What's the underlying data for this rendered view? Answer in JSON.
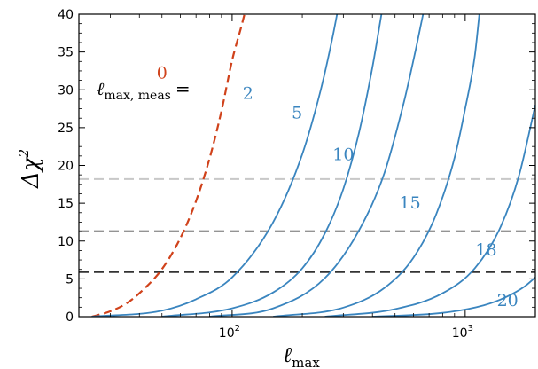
{
  "chart_data": {
    "type": "line",
    "xlabel_main": "ℓ",
    "xlabel_sub": "max",
    "ylabel_main": "Δχ",
    "ylabel_sup": "2",
    "xscale": "log",
    "xlim": [
      22,
      2000
    ],
    "ylim": [
      0,
      40
    ],
    "y_ticks": [
      0,
      5,
      10,
      15,
      20,
      25,
      30,
      35,
      40
    ],
    "x_major_ticks": [
      {
        "value": 100,
        "base": "10",
        "exp": "2"
      },
      {
        "value": 1000,
        "base": "10",
        "exp": "3"
      }
    ],
    "grid": false,
    "legend_title": {
      "main": "ℓ",
      "sub": "max, meas",
      "suffix": "="
    },
    "colors": {
      "ref": "#d0421b",
      "series": "#3a85bf",
      "axis": "#000000"
    },
    "thresholds": [
      {
        "y": 18.2,
        "color": "#c8c8c8"
      },
      {
        "y": 11.3,
        "color": "#949494"
      },
      {
        "y": 5.9,
        "color": "#333333"
      }
    ],
    "series": [
      {
        "name": "0",
        "x": [
          25,
          30,
          35,
          40,
          50,
          60,
          70,
          80,
          90,
          100,
          110,
          120
        ],
        "y": [
          0,
          0.7,
          1.7,
          3.1,
          6.3,
          10.4,
          15.3,
          20.9,
          27.2,
          33.9,
          38.6,
          43.2
        ],
        "style": "dashed",
        "label_at": [
          50,
          31.5
        ]
      },
      {
        "name": "2",
        "x": [
          25,
          50,
          70,
          100,
          150,
          200,
          240,
          270,
          290
        ],
        "y": [
          0,
          0.8,
          2.3,
          5.2,
          12.5,
          21.5,
          30,
          37,
          42
        ],
        "style": "solid",
        "label_at": [
          117,
          28.8
        ]
      },
      {
        "name": "5",
        "x": [
          50,
          100,
          150,
          200,
          250,
          300,
          350,
          400,
          440
        ],
        "y": [
          0,
          1.1,
          3.2,
          6.4,
          11,
          16.9,
          24.3,
          33,
          40.5
        ],
        "style": "solid",
        "label_at": [
          190,
          26.2
        ]
      },
      {
        "name": "10",
        "x": [
          80,
          150,
          250,
          350,
          450,
          550,
          620,
          680
        ],
        "y": [
          0,
          1.1,
          5.1,
          11.4,
          19,
          28.8,
          36,
          42
        ],
        "style": "solid",
        "label_at": [
          300,
          20.7
        ]
      },
      {
        "name": "15",
        "x": [
          150,
          300,
          450,
          600,
          750,
          900,
          1000,
          1100,
          1150
        ],
        "y": [
          0,
          1.2,
          3.8,
          7.8,
          13.5,
          21,
          27.5,
          34.5,
          40
        ],
        "style": "solid",
        "label_at": [
          580,
          14.3
        ]
      },
      {
        "name": "18",
        "x": [
          250,
          500,
          800,
          1100,
          1400,
          1700,
          2000
        ],
        "y": [
          0,
          1,
          3.1,
          6.4,
          11.5,
          18.6,
          28
        ],
        "style": "solid",
        "label_at": [
          1230,
          8.1
        ]
      },
      {
        "name": "20",
        "x": [
          400,
          800,
          1200,
          1500,
          1800,
          2000
        ],
        "y": [
          0,
          0.5,
          1.5,
          2.6,
          4,
          5.2
        ],
        "style": "solid",
        "label_at": [
          1520,
          1.4
        ]
      }
    ]
  }
}
